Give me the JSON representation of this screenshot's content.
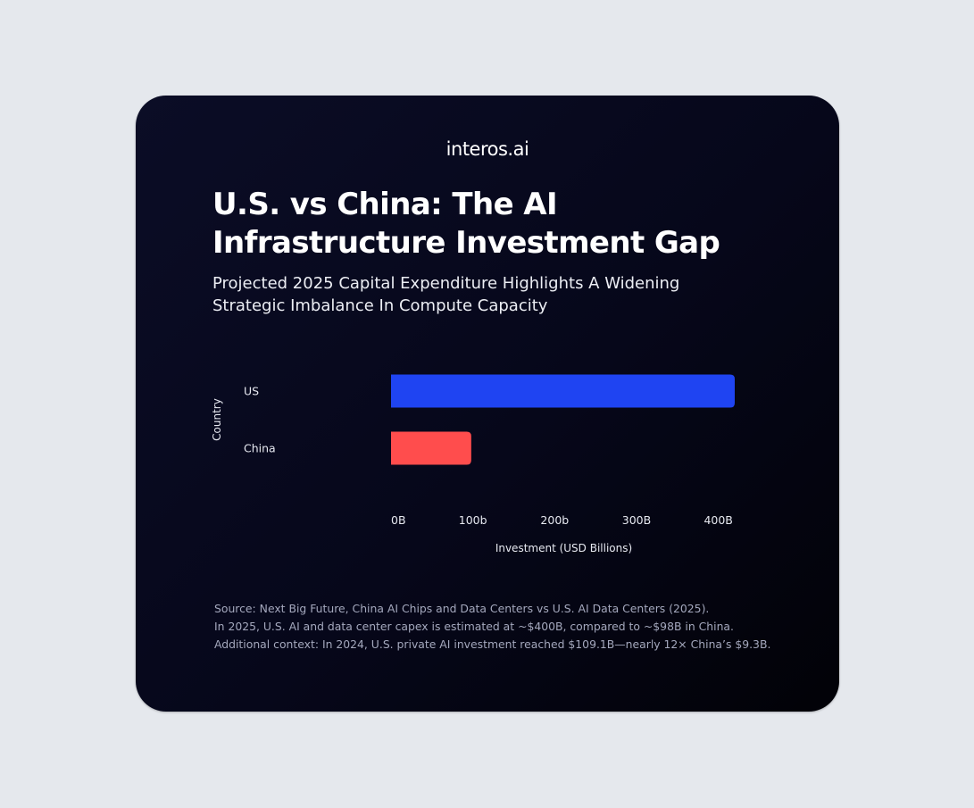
{
  "brand": {
    "logo_text": "interos.ai"
  },
  "header": {
    "title": "U.S. vs China: The AI Infrastructure Investment Gap",
    "subtitle": "Projected 2025 Capital Expenditure Highlights A Widening Strategic Imbalance In Compute Capacity"
  },
  "chart_data": {
    "type": "bar",
    "orientation": "horizontal",
    "categories": [
      "US",
      "China"
    ],
    "values": [
      420,
      98
    ],
    "colors": [
      "#1f44f2",
      "#ff4d4d"
    ],
    "xlabel": "Investment (USD Billions)",
    "ylabel": "Country",
    "xlim": [
      0,
      420
    ],
    "x_ticks": [
      {
        "value": 0,
        "label": "0B"
      },
      {
        "value": 100,
        "label": "100b"
      },
      {
        "value": 200,
        "label": "200b"
      },
      {
        "value": 300,
        "label": "300B"
      },
      {
        "value": 400,
        "label": "400B"
      }
    ],
    "grid": false,
    "legend": "none"
  },
  "source": {
    "lines": [
      "Source: Next Big Future, China AI Chips and Data Centers vs U.S. AI Data Centers (2025).",
      "In 2025, U.S. AI and data center capex is estimated at ~$400B, compared to ~$98B in China.",
      "Additional context: In 2024, U.S. private AI investment reached $109.1B—nearly 12× China’s $9.3B."
    ]
  },
  "colors": {
    "page_background": "#e5e8ed",
    "card_background": "#06071a",
    "us_bar": "#1f44f2",
    "china_bar": "#ff4d4d",
    "text_primary": "#ffffff",
    "text_muted": "#a4a8bd"
  }
}
